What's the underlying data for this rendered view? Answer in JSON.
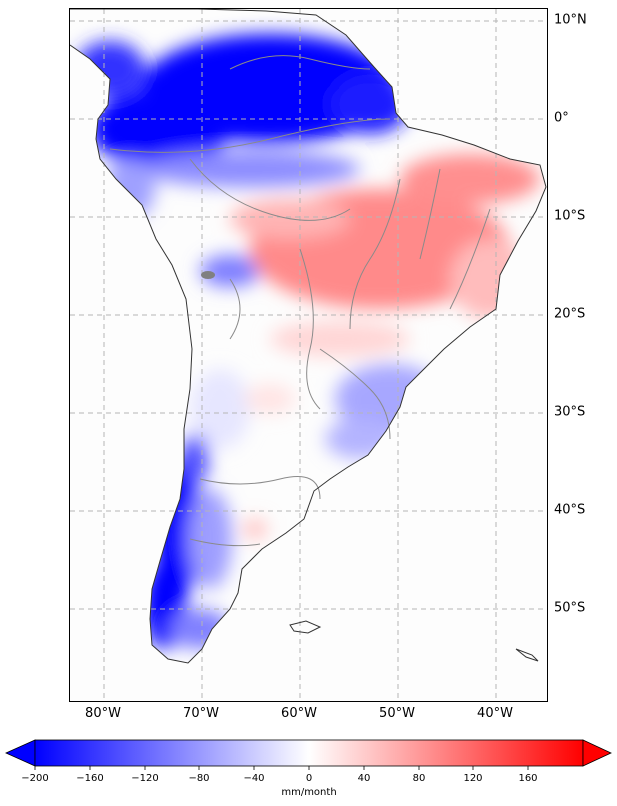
{
  "map": {
    "lat_labels": [
      "10°N",
      "0°",
      "10°S",
      "20°S",
      "30°S",
      "40°S",
      "50°S"
    ],
    "lon_labels": [
      "80°W",
      "70°W",
      "60°W",
      "50°W",
      "40°W"
    ],
    "extent": {
      "lon_min": -83.6,
      "lon_max": -34.8,
      "lat_min": -59.4,
      "lat_max": 11.4
    },
    "gridlines": "dashed grey",
    "colormap": "bwr",
    "colors": {
      "negative": "#0000ff",
      "neutral": "#ffffff",
      "positive": "#ff0000",
      "coastline": "#333333",
      "rivers": "#808080",
      "grid": "#b0b0b0"
    }
  },
  "colorbar": {
    "ticks": [
      "−200",
      "−160",
      "−120",
      "−80",
      "−40",
      "0",
      "40",
      "80",
      "120",
      "160"
    ],
    "unit": "mm/month",
    "range": [
      -200,
      200
    ],
    "extend": "both"
  }
}
